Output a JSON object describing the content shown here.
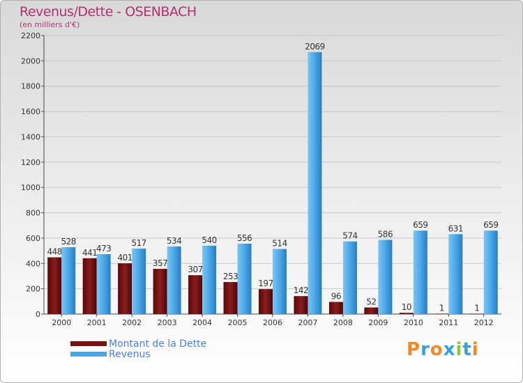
{
  "title": "Revenus/Dette - OSENBACH",
  "subtitle": "(en milliers d'€)",
  "logo": {
    "text": "Proxiti",
    "letters": [
      "P",
      "r",
      "o",
      "x",
      "i",
      "t",
      "i"
    ],
    "colors": [
      "#f08a24",
      "#3aa0d8",
      "#f08a24",
      "#3aa0d8",
      "#8cc63f",
      "#3aa0d8",
      "#f08a24"
    ]
  },
  "chart_data": {
    "type": "bar",
    "title": "Revenus/Dette - OSENBACH",
    "ylabel": "(en milliers d'€)",
    "xlabel": "",
    "categories": [
      "2000",
      "2001",
      "2002",
      "2003",
      "2004",
      "2005",
      "2006",
      "2007",
      "2008",
      "2009",
      "2010",
      "2011",
      "2012"
    ],
    "series": [
      {
        "name": "Montant de la Dette",
        "color": "#7a1010",
        "values": [
          448,
          441,
          401,
          357,
          307,
          253,
          197,
          142,
          96,
          52,
          10,
          1,
          1
        ]
      },
      {
        "name": "Revenus",
        "color": "#4aa8e8",
        "values": [
          528,
          473,
          517,
          534,
          540,
          556,
          514,
          2069,
          574,
          586,
          659,
          631,
          659
        ]
      }
    ],
    "ylim": [
      0,
      2200
    ],
    "yticks": [
      0,
      200,
      400,
      600,
      800,
      1000,
      1200,
      1400,
      1600,
      1800,
      2000,
      2200
    ],
    "grid": true,
    "legend": "bottom-left"
  }
}
